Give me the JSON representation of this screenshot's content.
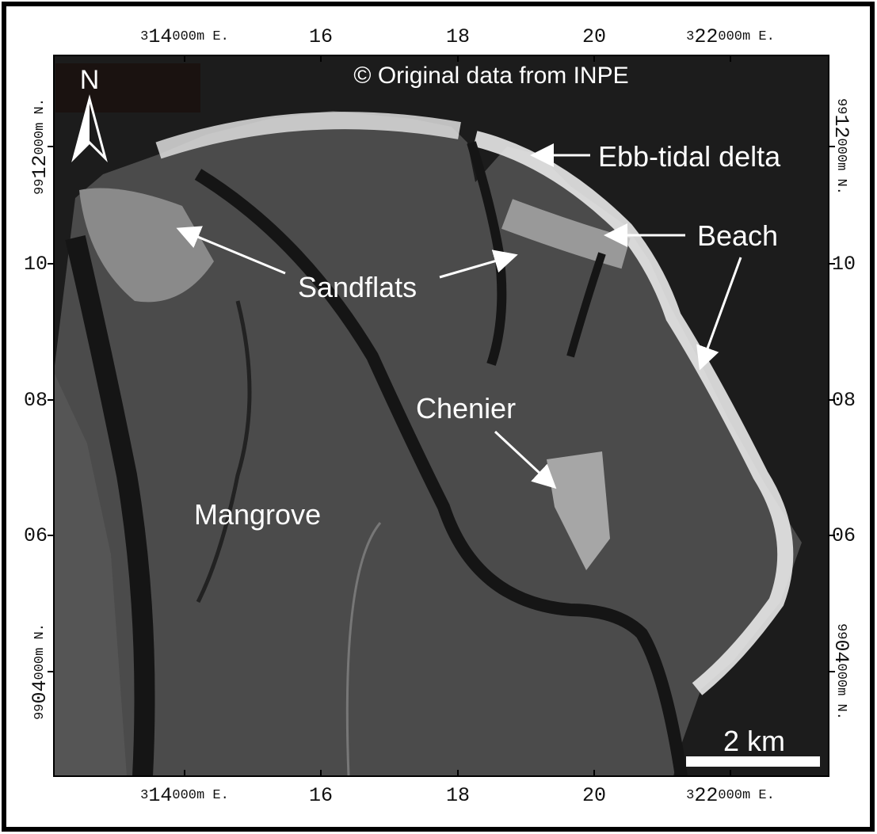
{
  "header": {
    "credit": "© Original data from INPE"
  },
  "north_arrow": {
    "label": "N"
  },
  "scale_bar": {
    "label": "2 km"
  },
  "coordinates": {
    "top": [
      {
        "prefix": "3",
        "major": "14",
        "suffix": "000m E."
      },
      {
        "major": "16"
      },
      {
        "major": "18"
      },
      {
        "major": "20"
      },
      {
        "prefix": "3",
        "major": "22",
        "suffix": "000m E."
      }
    ],
    "bottom": [
      {
        "prefix": "3",
        "major": "14",
        "suffix": "000m E."
      },
      {
        "major": "16"
      },
      {
        "major": "18"
      },
      {
        "major": "20"
      },
      {
        "prefix": "3",
        "major": "22",
        "suffix": "000m E."
      }
    ],
    "left": [
      {
        "prefix": "99",
        "major": "12",
        "suffix": "000m N."
      },
      {
        "major": "10"
      },
      {
        "major": "08"
      },
      {
        "major": "06"
      },
      {
        "prefix": "99",
        "major": "04",
        "suffix": "000m N."
      }
    ],
    "right": [
      {
        "prefix": "99",
        "major": "12",
        "suffix": "000m N."
      },
      {
        "major": "10"
      },
      {
        "major": "08"
      },
      {
        "major": "06"
      },
      {
        "prefix": "99",
        "major": "04",
        "suffix": "000m N."
      }
    ]
  },
  "annotations": {
    "ebb_tidal_delta": "Ebb-tidal delta",
    "beach": "Beach",
    "sandflats": "Sandflats",
    "chenier": "Chenier",
    "mangrove": "Mangrove"
  }
}
